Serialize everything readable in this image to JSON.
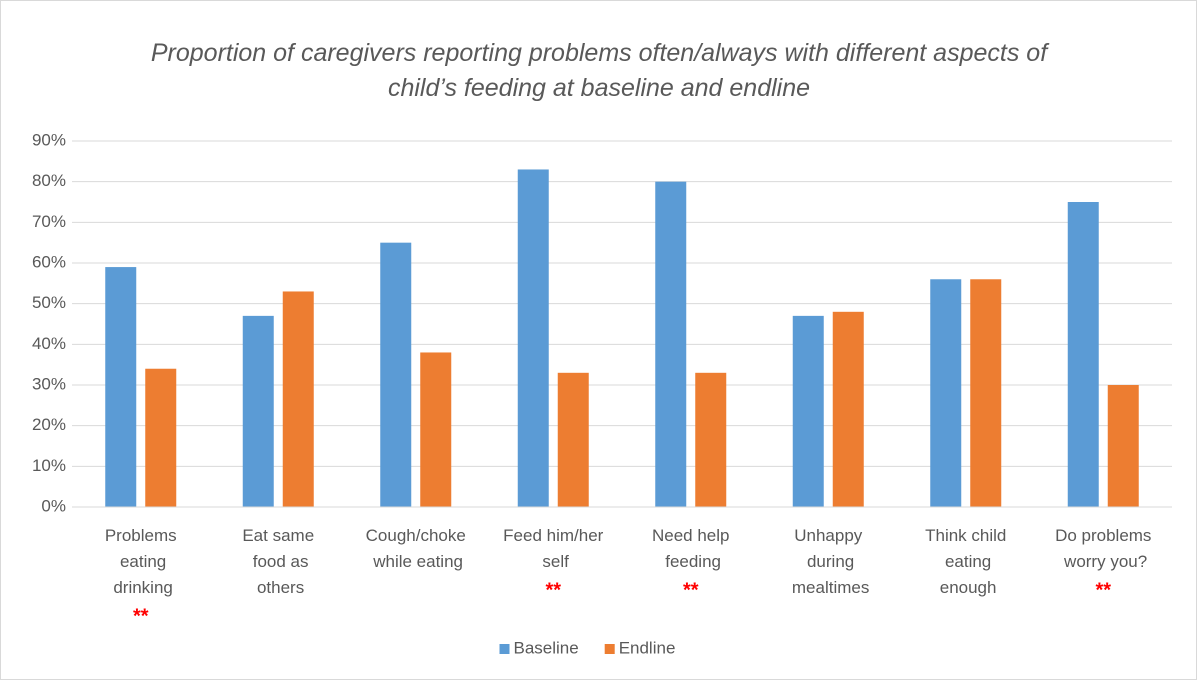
{
  "chart_data": {
    "type": "bar",
    "title": "Proportion of caregivers reporting problems often/always with different aspects of child’s feeding at baseline and endline",
    "categories": [
      "Problems eating drinking",
      "Eat same food as others",
      "Cough/choke while eating",
      "Feed him/her self",
      "Need help feeding",
      "Unhappy during mealtimes",
      "Think child eating enough",
      "Do problems worry you?"
    ],
    "significance": [
      "**",
      null,
      null,
      "**",
      "**",
      null,
      null,
      "**"
    ],
    "significance_color": "#ff0000",
    "series": [
      {
        "name": "Baseline",
        "color": "#5b9bd5",
        "values": [
          59,
          47,
          65,
          83,
          80,
          47,
          56,
          75
        ]
      },
      {
        "name": "Endline",
        "color": "#ed7d31",
        "values": [
          34,
          53,
          38,
          33,
          33,
          48,
          56,
          30
        ]
      }
    ],
    "ylim": [
      0,
      90
    ],
    "yticks": [
      {
        "value": 0,
        "label": "0%"
      },
      {
        "value": 10,
        "label": "10%"
      },
      {
        "value": 20,
        "label": "20%"
      },
      {
        "value": 30,
        "label": "30%"
      },
      {
        "value": 40,
        "label": "40%"
      },
      {
        "value": 50,
        "label": "50%"
      },
      {
        "value": 60,
        "label": "60%"
      },
      {
        "value": 70,
        "label": "70%"
      },
      {
        "value": 80,
        "label": "80%"
      },
      {
        "value": 90,
        "label": "90%"
      }
    ],
    "grid": true,
    "legend": "bottom"
  }
}
